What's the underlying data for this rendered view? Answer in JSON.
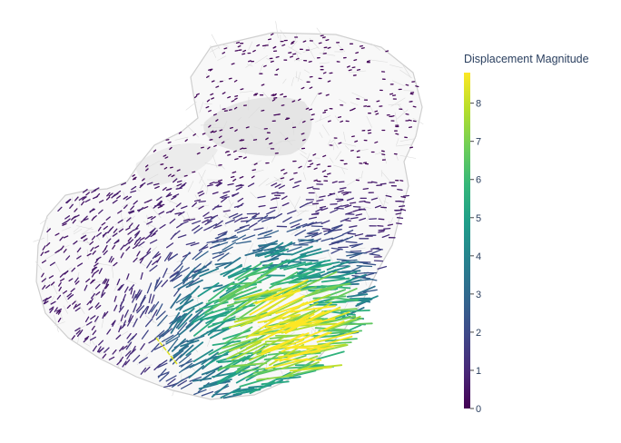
{
  "chart_data": {
    "type": "cone",
    "title": "",
    "colorbar": {
      "title": "Displacement Magnitude",
      "range": [
        0,
        8.8
      ],
      "ticks": [
        0,
        1,
        2,
        3,
        4,
        5,
        6,
        7,
        8
      ],
      "colorscale": "Viridis"
    },
    "mesh_color": "#cfcfcf",
    "summary": {
      "min_magnitude": 0,
      "max_magnitude": 8.8,
      "high_magnitude_region": "lower-right"
    }
  },
  "colors": {
    "viridis": [
      "#440154",
      "#482878",
      "#3e4989",
      "#31688e",
      "#26828e",
      "#1f9e89",
      "#35b779",
      "#6ece58",
      "#b5de2b",
      "#fde725"
    ]
  }
}
